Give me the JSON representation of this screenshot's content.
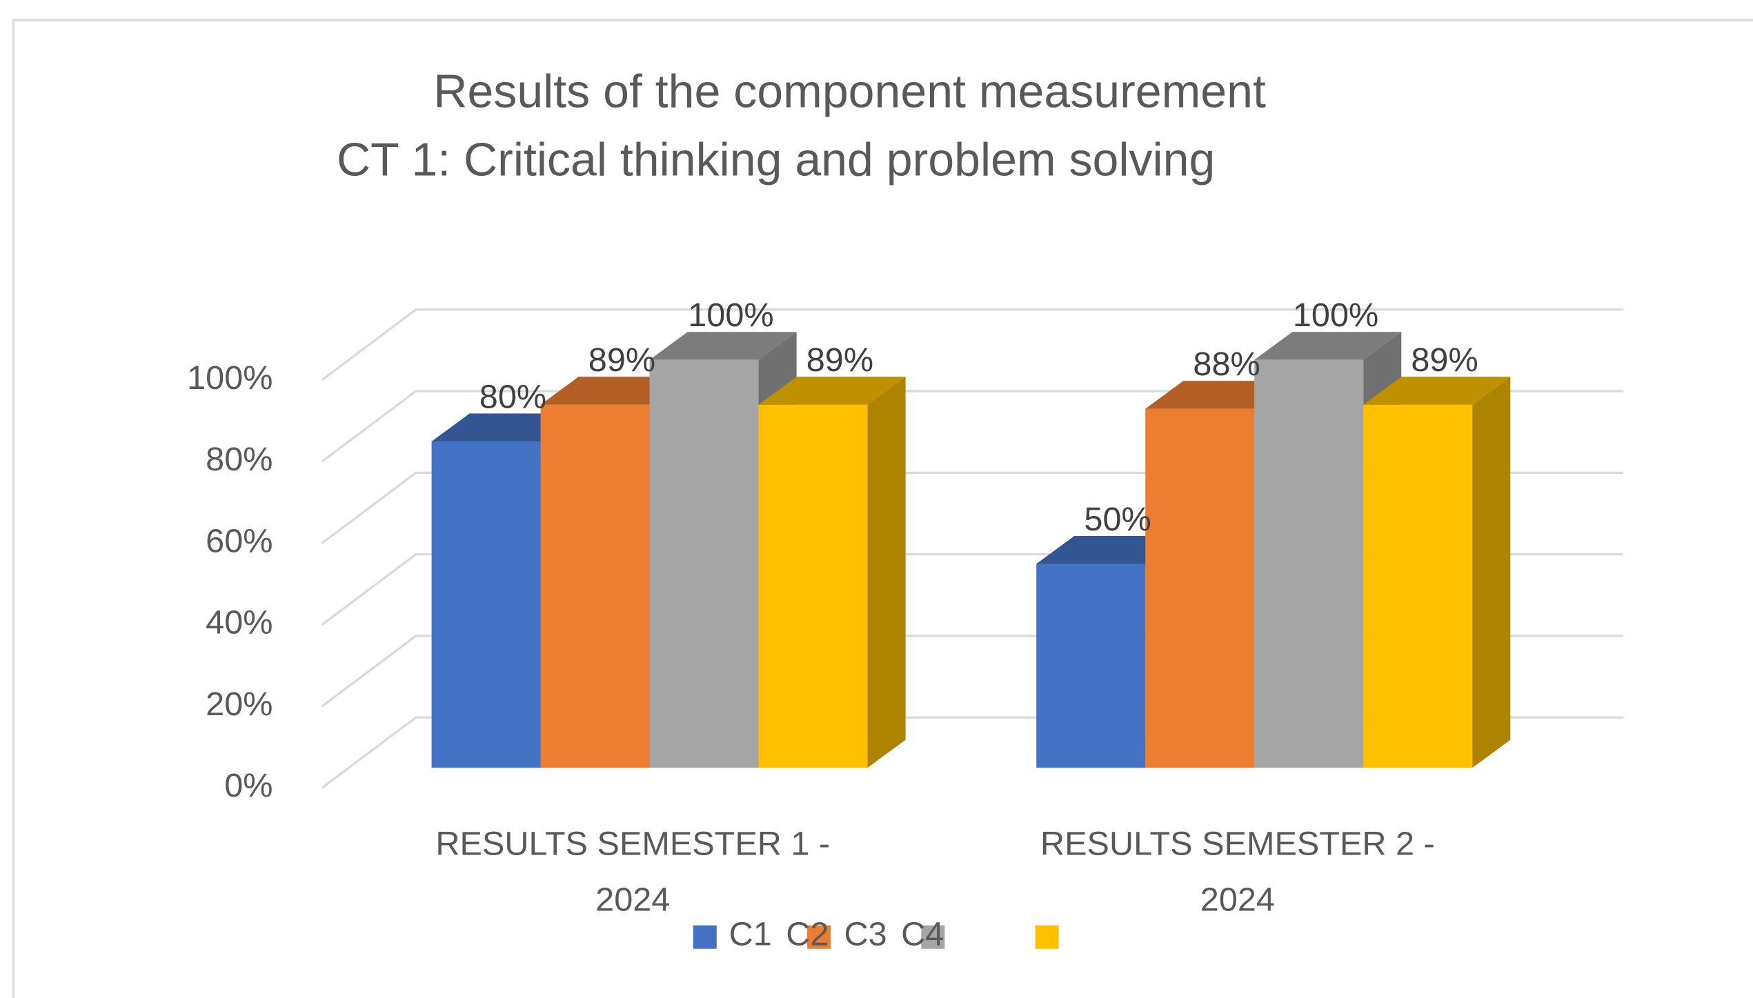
{
  "chart_data": {
    "type": "bar3d",
    "title": "Results of the component measurement",
    "subtitle": "CT 1: Critical thinking and problem solving",
    "categories": [
      "RESULTS SEMESTER 1 - 2024",
      "RESULTS SEMESTER 2 - 2024"
    ],
    "series": [
      {
        "name": "C1",
        "color": "#4472c4",
        "values": [
          80,
          50
        ],
        "value_labels": [
          "80%",
          "50%"
        ]
      },
      {
        "name": "C2",
        "color": "#ed7d31",
        "values": [
          89,
          88
        ],
        "value_labels": [
          "89%",
          "88%"
        ]
      },
      {
        "name": "C3",
        "color": "#a5a5a5",
        "values": [
          100,
          100
        ],
        "value_labels": [
          "100%",
          "100%"
        ]
      },
      {
        "name": "C4",
        "color": "#ffc000",
        "values": [
          89,
          89
        ],
        "value_labels": [
          "89%",
          "89%"
        ]
      }
    ],
    "ylim": [
      0,
      100
    ],
    "yticks": [
      {
        "value": 0,
        "label": "0%"
      },
      {
        "value": 20,
        "label": "20%"
      },
      {
        "value": 40,
        "label": "40%"
      },
      {
        "value": 60,
        "label": "60%"
      },
      {
        "value": 80,
        "label": "80%"
      },
      {
        "value": 100,
        "label": "100%"
      }
    ],
    "grid": true,
    "legend": "bottom"
  }
}
